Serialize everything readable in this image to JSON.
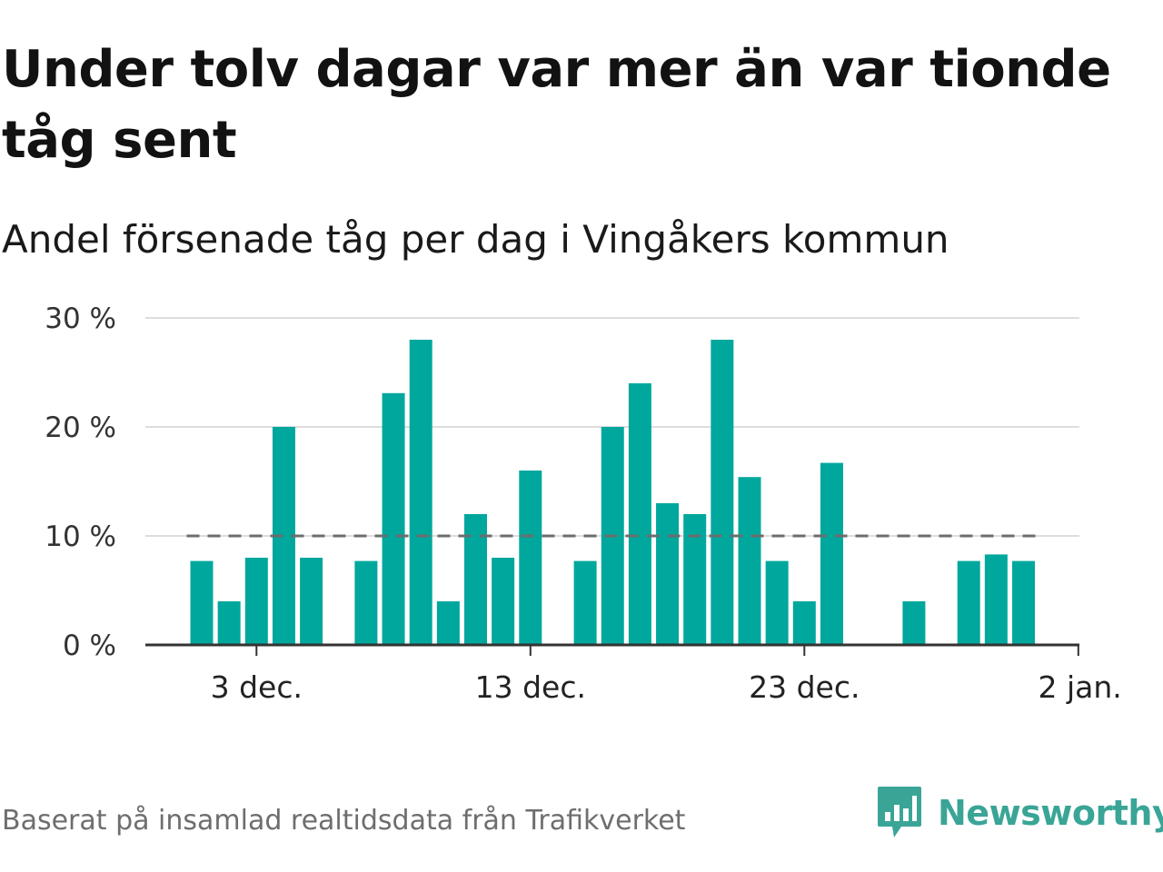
{
  "title": "Under tolv dagar var mer än var tionde tåg sent",
  "subtitle": "Andel försenade tåg per dag i Vingåkers kommun",
  "footer": "Baserat på insamlad realtidsdata från Trafikverket",
  "brand": {
    "name": "Newsworthy",
    "icon": "newsworthy-logo-icon",
    "color": "#3aa597"
  },
  "colors": {
    "bar": "#00a79d",
    "reference_line": "#6d6d6d",
    "grid": "#dddddd",
    "axis": "#333333"
  },
  "chart_data": {
    "type": "bar",
    "x_unit": "day",
    "y_unit": "percent",
    "x": [
      "2023-12-01",
      "2023-12-02",
      "2023-12-03",
      "2023-12-04",
      "2023-12-05",
      "2023-12-06",
      "2023-12-07",
      "2023-12-08",
      "2023-12-09",
      "2023-12-10",
      "2023-12-11",
      "2023-12-12",
      "2023-12-13",
      "2023-12-14",
      "2023-12-15",
      "2023-12-16",
      "2023-12-17",
      "2023-12-18",
      "2023-12-19",
      "2023-12-20",
      "2023-12-21",
      "2023-12-22",
      "2023-12-23",
      "2023-12-24",
      "2023-12-25",
      "2023-12-26",
      "2023-12-27",
      "2023-12-28",
      "2023-12-29",
      "2023-12-30",
      "2023-12-31",
      "2024-01-01"
    ],
    "values": [
      7.7,
      4,
      8,
      20,
      8,
      0,
      7.7,
      23.1,
      28,
      4,
      12,
      8,
      16,
      0,
      7.7,
      20,
      24,
      13,
      12,
      28,
      15.4,
      7.7,
      4,
      16.7,
      0,
      0,
      4,
      0,
      7.7,
      8.3,
      7.7,
      0
    ],
    "reference_line": {
      "value": 10,
      "style": "dashed"
    },
    "ylim": [
      0,
      30
    ],
    "y_ticks": [
      0,
      10,
      20,
      30
    ],
    "y_tick_labels": [
      "0 %",
      "10 %",
      "20 %",
      "30 %"
    ],
    "x_ticks": [
      "2023-12-03",
      "2023-12-13",
      "2023-12-23",
      "2024-01-02"
    ],
    "x_tick_labels": [
      "3 dec.",
      "13 dec.",
      "23 dec.",
      "2 jan."
    ],
    "grid": true,
    "legend": false
  }
}
